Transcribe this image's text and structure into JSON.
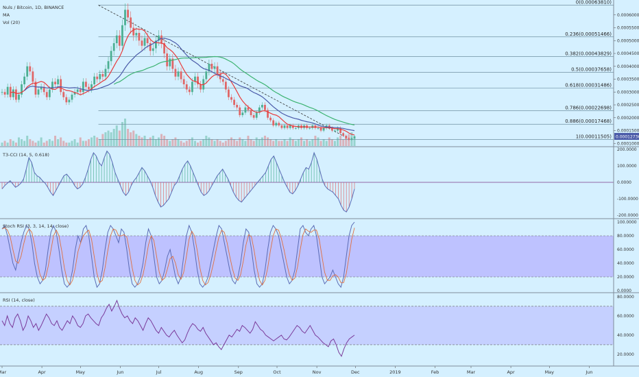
{
  "header": {
    "symbol": "Nuls / Bitcoin, 1D, BINANCE",
    "ma": "MA",
    "vol": "Vol (20)"
  },
  "last_price": "0.00012736",
  "colors": {
    "background": "#d5f0ff",
    "up": "#4caf92",
    "down": "#e06666",
    "ma_fast": "#e83a3a",
    "ma_mid": "#4a5aa8",
    "ma_slow": "#3cb371",
    "fib_line": "#6f8fa0",
    "oscillator": "#5a6bb5",
    "band": "#b8b6ff",
    "price_tag": "#4a5aa8"
  },
  "chart_data": [
    {
      "type": "candlestick",
      "panel": "price",
      "x_range": [
        "2018-03-01",
        "2019-06-20"
      ],
      "y_range": [
        9e-05,
        0.00065
      ],
      "y_ticks": [
        "0.00010000",
        "0.00015000",
        "0.00020000",
        "0.00025000",
        "0.00030000",
        "0.00035000",
        "0.00040000",
        "0.00045000",
        "0.00050000",
        "0.00055000",
        "0.00060000"
      ],
      "fib_levels": [
        {
          "label": "0(0.00063810)",
          "value": 0.0006381
        },
        {
          "label": "0.236(0.00051466)",
          "value": 0.00051466
        },
        {
          "label": "0.382(0.00043829)",
          "value": 0.00043829
        },
        {
          "label": "0.5(0.00037658)",
          "value": 0.00037658
        },
        {
          "label": "0.618(0.00031486)",
          "value": 0.00031486
        },
        {
          "label": "0.786(0.00022698)",
          "value": 0.00022698
        },
        {
          "label": "0.886(0.00017468)",
          "value": 0.00017468
        },
        {
          "label": "1(0.00011505)",
          "value": 0.00011505
        }
      ],
      "trendline": [
        {
          "x": "2018-05-15",
          "y": 0.000638
        },
        {
          "x": "2018-11-22",
          "y": 0.000128
        }
      ],
      "close": [
        0.0003,
        0.00029,
        0.00032,
        0.00028,
        0.00031,
        0.00027,
        0.00029,
        0.00033,
        0.00036,
        0.0004,
        0.00038,
        0.00034,
        0.00029,
        0.00031,
        0.00032,
        0.0003,
        0.00028,
        0.00031,
        0.00034,
        0.00033,
        0.00035,
        0.0003,
        0.00028,
        0.00026,
        0.00027,
        0.00029,
        0.0003,
        0.00031,
        0.0003,
        0.00034,
        0.00032,
        0.00031,
        0.00033,
        0.00036,
        0.00035,
        0.00037,
        0.00036,
        0.00039,
        0.00042,
        0.00046,
        0.00049,
        0.00052,
        0.00048,
        0.00056,
        0.00062,
        0.00059,
        0.00055,
        0.00052,
        0.00053,
        0.0005,
        0.00048,
        0.00051,
        0.00049,
        0.00046,
        0.00047,
        0.0005,
        0.00052,
        0.00049,
        0.00045,
        0.0004,
        0.00043,
        0.00039,
        0.00036,
        0.00038,
        0.00035,
        0.00033,
        0.00031,
        0.0003,
        0.00034,
        0.00036,
        0.00033,
        0.00031,
        0.00035,
        0.00038,
        0.00041,
        0.00039,
        0.0004,
        0.00037,
        0.00035,
        0.00034,
        0.00031,
        0.00028,
        0.00027,
        0.00025,
        0.00024,
        0.00021,
        0.00022,
        0.00024,
        0.00023,
        0.00021,
        0.0002,
        0.00022,
        0.00024,
        0.00025,
        0.00023,
        0.0002,
        0.00019,
        0.00017,
        0.00018,
        0.00017,
        0.00016,
        0.00017,
        0.00016,
        0.00017,
        0.00016,
        0.00016,
        0.00017,
        0.00016,
        0.00017,
        0.00016,
        0.00016,
        0.00017,
        0.00016,
        0.00016,
        0.00015,
        0.00016,
        0.00017,
        0.00016,
        0.00015,
        0.00015,
        0.00016,
        0.00014,
        0.00013,
        0.00012,
        0.000115,
        0.00012,
        0.000128
      ],
      "volume": [
        2,
        3,
        2,
        4,
        3,
        2,
        5,
        4,
        3,
        6,
        4,
        3,
        2,
        3,
        5,
        2,
        3,
        4,
        3,
        6,
        4,
        5,
        3,
        2,
        2,
        3,
        4,
        2,
        5,
        3,
        3,
        4,
        5,
        6,
        5,
        4,
        7,
        8,
        9,
        8,
        10,
        12,
        9,
        14,
        16,
        10,
        8,
        9,
        7,
        6,
        5,
        6,
        4,
        5,
        6,
        4,
        5,
        7,
        6,
        4,
        3,
        4,
        5,
        4,
        3,
        2,
        3,
        4,
        5,
        3,
        2,
        3,
        4,
        6,
        5,
        4,
        3,
        4,
        3,
        2,
        3,
        4,
        5,
        4,
        3,
        5,
        4,
        3,
        6,
        4,
        3,
        5,
        4,
        5,
        6,
        5,
        4,
        3,
        4,
        3,
        3,
        4,
        3,
        5,
        4,
        3,
        4,
        5,
        3,
        4,
        3,
        4,
        6,
        5,
        3,
        4,
        3,
        5,
        4,
        3,
        5,
        6,
        4,
        5,
        7,
        8,
        5
      ]
    },
    {
      "type": "line",
      "panel": "T3-CCI",
      "name": "T3-CCI (14, 5, 0.618)",
      "y_range": [
        -200,
        200
      ],
      "y_ticks": [
        "200.0000",
        "100.0000",
        "0.0000",
        "-100.0000",
        "-200.0000"
      ],
      "values": [
        -40,
        -20,
        -5,
        10,
        -10,
        -30,
        -20,
        -5,
        20,
        80,
        150,
        120,
        60,
        40,
        30,
        10,
        -5,
        -30,
        -60,
        -80,
        -50,
        -20,
        10,
        40,
        50,
        30,
        10,
        -20,
        -40,
        -30,
        -10,
        30,
        80,
        140,
        180,
        160,
        120,
        100,
        150,
        190,
        170,
        120,
        60,
        20,
        -20,
        -60,
        -80,
        -60,
        -20,
        10,
        30,
        60,
        90,
        70,
        40,
        10,
        -30,
        -80,
        -120,
        -150,
        -140,
        -120,
        -100,
        -60,
        -20,
        0,
        40,
        80,
        110,
        130,
        100,
        60,
        20,
        -20,
        -60,
        -80,
        -70,
        -50,
        -20,
        10,
        40,
        60,
        80,
        50,
        20,
        -20,
        -60,
        -90,
        -110,
        -120,
        -100,
        -80,
        -60,
        -40,
        -20,
        0,
        20,
        40,
        60,
        100,
        140,
        160,
        120,
        80,
        40,
        0,
        -30,
        -60,
        -70,
        -50,
        -20,
        20,
        60,
        90,
        80,
        120,
        180,
        140,
        80,
        20,
        -20,
        -40,
        -50,
        -60,
        -80,
        -100,
        -140,
        -170,
        -180,
        -150,
        -100,
        -40
      ]
    },
    {
      "type": "line",
      "panel": "StochRSI",
      "name": "Stoch RSI (3, 3, 14, 14, close)",
      "y_range": [
        0,
        100
      ],
      "y_ticks": [
        "100.0000",
        "80.0000",
        "60.0000",
        "40.0000",
        "20.0000",
        "0.0000"
      ],
      "band": [
        20,
        80
      ],
      "values": [
        90,
        95,
        80,
        60,
        40,
        30,
        50,
        70,
        85,
        95,
        90,
        70,
        40,
        20,
        10,
        15,
        30,
        60,
        85,
        95,
        85,
        60,
        30,
        10,
        5,
        10,
        30,
        60,
        80,
        70,
        90,
        95,
        80,
        50,
        20,
        5,
        10,
        30,
        60,
        85,
        95,
        90,
        80,
        70,
        90,
        85,
        60,
        30,
        10,
        5,
        10,
        20,
        40,
        70,
        90,
        80,
        50,
        20,
        10,
        15,
        30,
        50,
        60,
        40,
        20,
        10,
        20,
        50,
        80,
        95,
        85,
        60,
        30,
        10,
        5,
        10,
        20,
        40,
        60,
        80,
        95,
        90,
        70,
        50,
        30,
        15,
        10,
        20,
        40,
        70,
        90,
        85,
        60,
        30,
        10,
        5,
        10,
        30,
        60,
        85,
        95,
        90,
        80,
        60,
        40,
        20,
        10,
        15,
        30,
        60,
        90,
        95,
        85,
        80,
        90,
        95,
        80,
        50,
        20,
        10,
        15,
        20,
        30,
        20,
        10,
        5,
        20,
        50,
        80,
        95,
        100
      ]
    },
    {
      "type": "line",
      "panel": "RSI",
      "name": "RSI (14, close)",
      "y_range": [
        10,
        82
      ],
      "y_ticks": [
        "80.0000",
        "60.0000",
        "40.0000",
        "20.0000"
      ],
      "band": [
        30,
        70
      ],
      "values": [
        55,
        50,
        60,
        52,
        48,
        58,
        62,
        55,
        45,
        50,
        60,
        55,
        48,
        52,
        45,
        50,
        56,
        62,
        58,
        52,
        50,
        55,
        48,
        45,
        50,
        55,
        52,
        60,
        56,
        50,
        48,
        52,
        60,
        62,
        58,
        55,
        52,
        50,
        58,
        62,
        68,
        72,
        65,
        70,
        76,
        68,
        62,
        58,
        60,
        55,
        52,
        58,
        55,
        50,
        45,
        52,
        58,
        55,
        50,
        45,
        42,
        48,
        44,
        40,
        38,
        42,
        45,
        40,
        36,
        32,
        35,
        42,
        48,
        52,
        50,
        46,
        44,
        48,
        42,
        38,
        34,
        30,
        32,
        28,
        25,
        30,
        35,
        40,
        38,
        42,
        46,
        44,
        50,
        48,
        45,
        42,
        46,
        54,
        50,
        46,
        44,
        40,
        38,
        36,
        34,
        36,
        38,
        40,
        36,
        35,
        38,
        42,
        46,
        50,
        48,
        44,
        42,
        46,
        50,
        45,
        40,
        38,
        35,
        32,
        30,
        28,
        34,
        36,
        30,
        22,
        18,
        26,
        32,
        36,
        38,
        40
      ]
    }
  ],
  "time_axis": {
    "labels": [
      "Mar",
      "Apr",
      "May",
      "Jun",
      "Jul",
      "Aug",
      "Sep",
      "Oct",
      "Nov",
      "Dec",
      "2019",
      "Feb",
      "Mar",
      "Apr",
      "May",
      "Jun"
    ],
    "dates": [
      "2018-03-01",
      "2018-04-01",
      "2018-05-01",
      "2018-06-01",
      "2018-07-01",
      "2018-08-01",
      "2018-09-01",
      "2018-10-01",
      "2018-11-01",
      "2018-12-01",
      "2019-01-01",
      "2019-02-01",
      "2019-03-01",
      "2019-04-01",
      "2019-05-01",
      "2019-06-01"
    ]
  }
}
